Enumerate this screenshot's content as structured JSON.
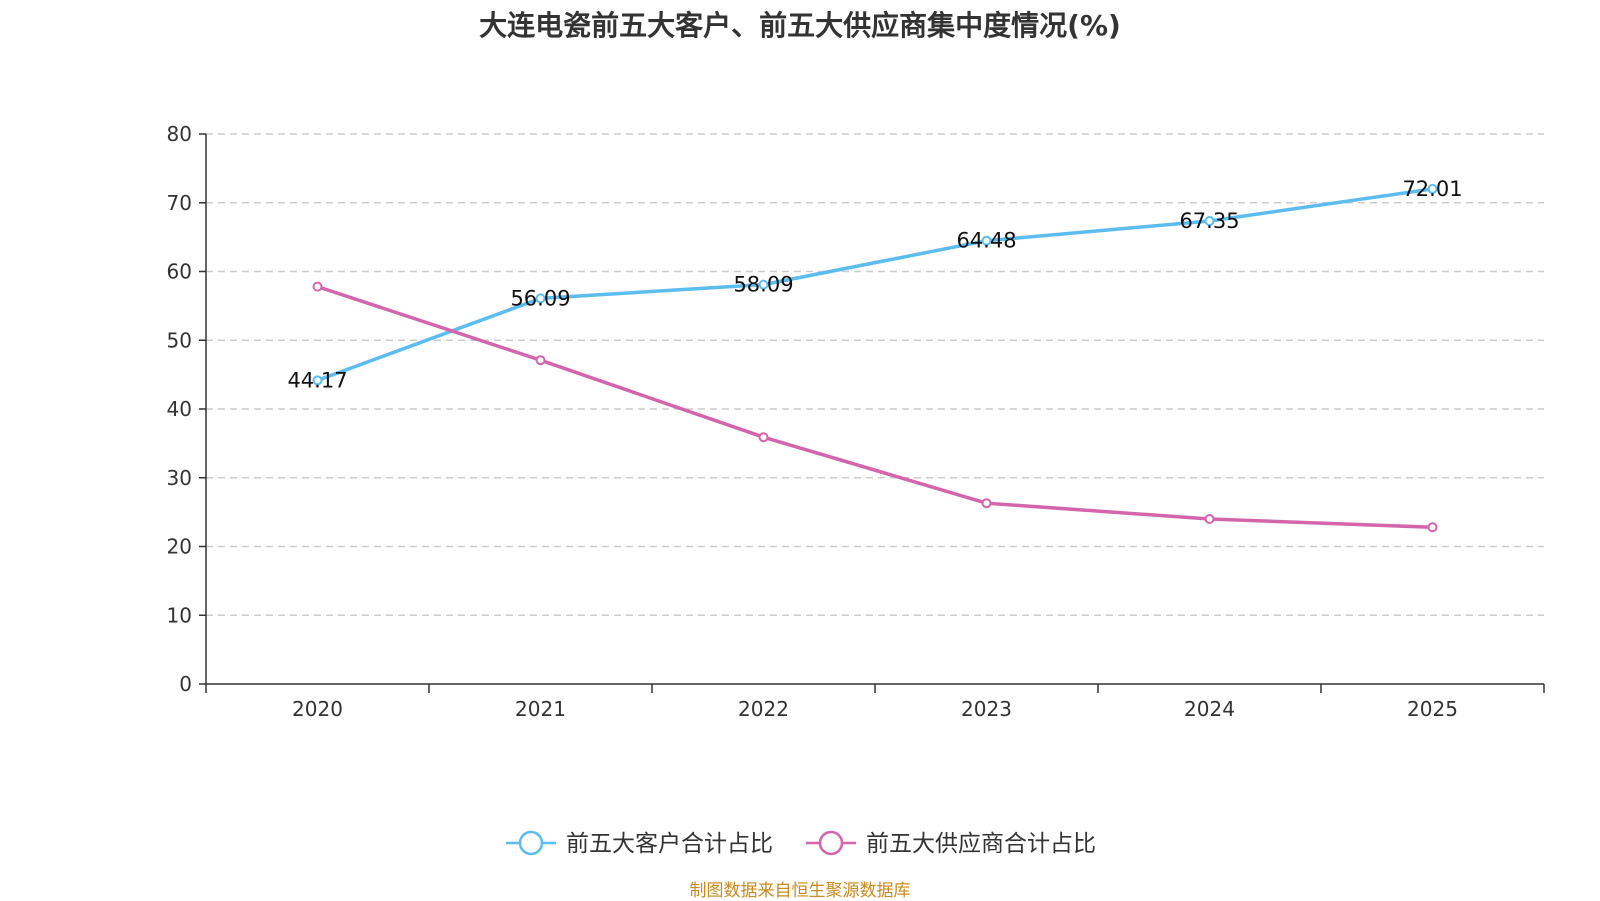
{
  "chart_data": {
    "type": "line",
    "title": "大连电瓷前五大客户、前五大供应商集中度情况(%)",
    "categories": [
      "2020",
      "2021",
      "2022",
      "2023",
      "2024",
      "2025"
    ],
    "ylim": [
      0,
      80
    ],
    "yticks": [
      0,
      10,
      20,
      30,
      40,
      50,
      60,
      70,
      80
    ],
    "grid": true,
    "legend_position": "bottom-center",
    "series": [
      {
        "name": "前五大客户合计占比",
        "color": "#5bbcf0",
        "values": [
          44.17,
          56.09,
          58.09,
          64.48,
          67.35,
          72.01
        ],
        "labels": [
          "44.17",
          "56.09",
          "58.09",
          "64.48",
          "67.35",
          "72.01"
        ]
      },
      {
        "name": "前五大供应商合计占比",
        "color": "#d465ad",
        "values": [
          57.8,
          47.1,
          35.9,
          26.3,
          24.0,
          22.8
        ]
      }
    ]
  },
  "source": {
    "text": "制图数据来自恒生聚源数据库",
    "color": "#c98a1e"
  }
}
